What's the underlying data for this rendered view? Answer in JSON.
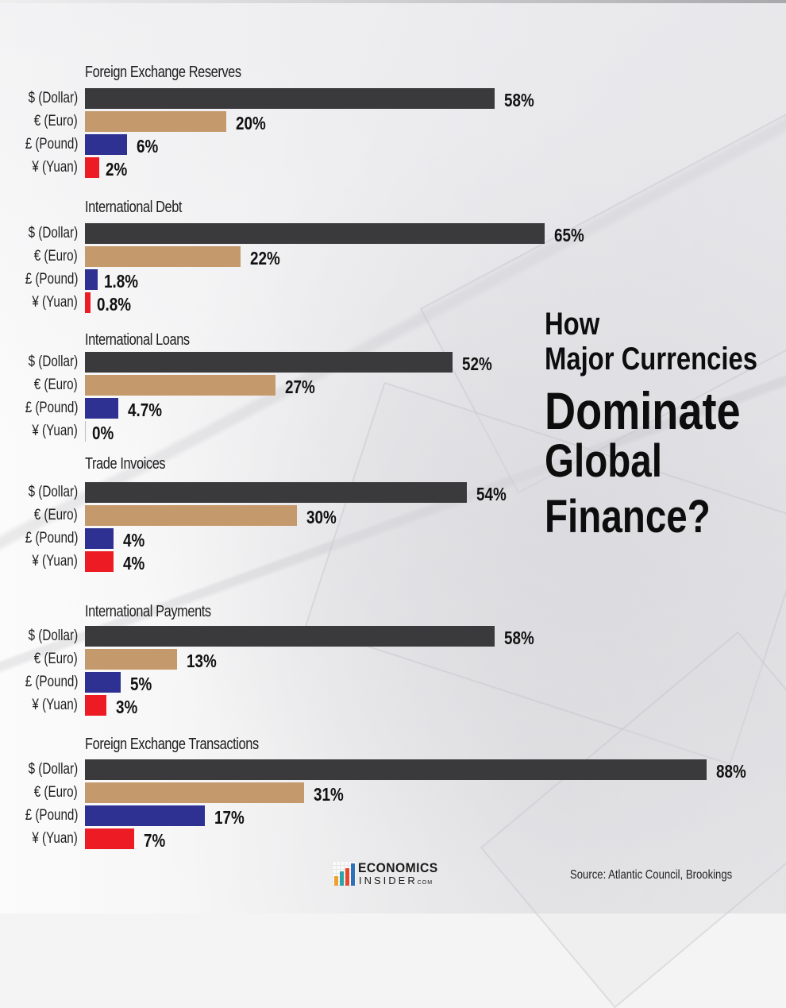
{
  "headline": {
    "line1": "How",
    "line2": "Major Currencies",
    "line3": "Dominate",
    "line4": "Global",
    "line5": "Finance?"
  },
  "colors": {
    "dollar": "#3a3a3c",
    "euro": "#c49a6c",
    "pound": "#2e3192",
    "yuan": "#ed1c24"
  },
  "currency_labels": [
    "$ (Dollar)",
    "€ (Euro)",
    "£ (Pound)",
    "¥ (Yuan)"
  ],
  "groups": [
    {
      "title": "Foreign Exchange Reserves",
      "values": [
        "58%",
        "20%",
        "6%",
        "2%"
      ]
    },
    {
      "title": "International Debt",
      "values": [
        "65%",
        "22%",
        "1.8%",
        "0.8%"
      ]
    },
    {
      "title": "International Loans",
      "values": [
        "52%",
        "27%",
        "4.7%",
        "0%"
      ]
    },
    {
      "title": "Trade Invoices",
      "values": [
        "54%",
        "30%",
        "4%",
        "4%"
      ]
    },
    {
      "title": "International Payments",
      "values": [
        "58%",
        "13%",
        "5%",
        "3%"
      ]
    },
    {
      "title": "Foreign Exchange Transactions",
      "values": [
        "88%",
        "31%",
        "17%",
        "7%"
      ]
    }
  ],
  "logo": {
    "top": "ECONOMICS",
    "bottom": "INSIDER",
    "suffix": "COM"
  },
  "source": "Source: Atlantic Council, Brookings",
  "chart_data": {
    "type": "bar",
    "orientation": "horizontal",
    "title": "How Major Currencies Dominate Global Finance?",
    "categories": [
      "Foreign Exchange Reserves",
      "International Debt",
      "International Loans",
      "Trade Invoices",
      "International Payments",
      "Foreign Exchange Transactions"
    ],
    "series": [
      {
        "name": "$ (Dollar)",
        "color": "#3a3a3c",
        "values": [
          58,
          65,
          52,
          54,
          58,
          88
        ]
      },
      {
        "name": "€ (Euro)",
        "color": "#c49a6c",
        "values": [
          20,
          22,
          27,
          30,
          13,
          31
        ]
      },
      {
        "name": "£ (Pound)",
        "color": "#2e3192",
        "values": [
          6,
          1.8,
          4.7,
          4,
          5,
          17
        ]
      },
      {
        "name": "¥ (Yuan)",
        "color": "#ed1c24",
        "values": [
          2,
          0.8,
          0,
          4,
          3,
          7
        ]
      }
    ],
    "xlabel": "",
    "ylabel": "",
    "unit": "%",
    "data_labels": true,
    "grid": false,
    "legend": "none (labels per row)",
    "source": "Source: Atlantic Council, Brookings"
  }
}
